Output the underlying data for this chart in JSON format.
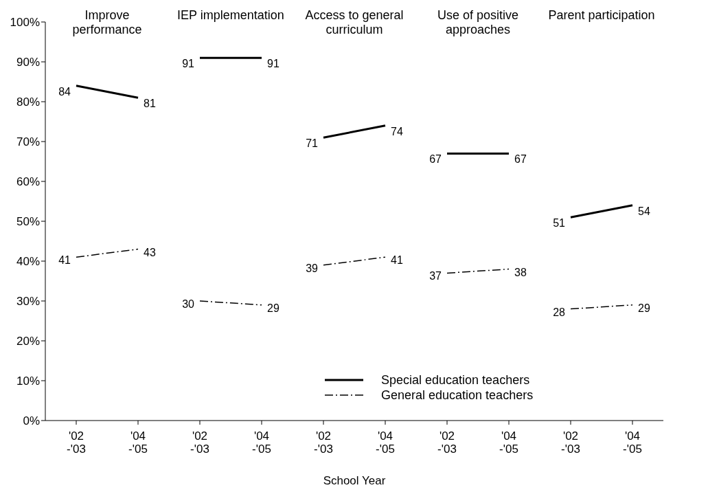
{
  "chart_data": [
    {
      "type": "line",
      "title": "Improve performance",
      "categories": [
        "'02 -'03",
        "'04 -'05"
      ],
      "ylim": [
        0,
        100
      ],
      "yticks": [
        {
          "value": 0,
          "label": "0%"
        },
        {
          "value": 10,
          "label": "10%"
        },
        {
          "value": 20,
          "label": "20%"
        },
        {
          "value": 30,
          "label": "30%"
        },
        {
          "value": 40,
          "label": "40%"
        },
        {
          "value": 50,
          "label": "50%"
        },
        {
          "value": 60,
          "label": "60%"
        },
        {
          "value": 70,
          "label": "70%"
        },
        {
          "value": 80,
          "label": "80%"
        },
        {
          "value": 90,
          "label": "90%"
        },
        {
          "value": 100,
          "label": "100%"
        }
      ],
      "marker": "none",
      "data_labels": true,
      "series": [
        {
          "color": "#000000",
          "line_style": "solid",
          "values": [
            84,
            81
          ]
        },
        {
          "color": "#000000",
          "line_style": "dashed",
          "values": [
            41,
            43
          ]
        }
      ]
    },
    {
      "type": "line",
      "title": "IEP implementation",
      "categories": [
        "'02 -'03",
        "'04 -'05"
      ],
      "ylim": [
        0,
        100
      ],
      "tick_labels": "x",
      "marker": "none",
      "data_labels": true,
      "series": [
        {
          "color": "#000000",
          "line_style": "solid",
          "values": [
            91,
            91
          ]
        },
        {
          "color": "#000000",
          "line_style": "dashed",
          "values": [
            30,
            29
          ]
        }
      ]
    },
    {
      "type": "line",
      "title": "Access to general curriculum",
      "xlabel": "School Year",
      "categories": [
        "'02 -'03",
        "'04 -'05"
      ],
      "ylim": [
        0,
        100
      ],
      "tick_labels": "x",
      "marker": "none",
      "data_labels": true,
      "legend": "bottom right",
      "series": [
        {
          "name": "Special education teachers",
          "color": "#000000",
          "line_style": "solid",
          "values": [
            71,
            74
          ]
        },
        {
          "name": "General education teachers",
          "color": "#000000",
          "line_style": "dashed",
          "values": [
            39,
            41
          ]
        }
      ]
    },
    {
      "type": "line",
      "title": "Use of positive approaches",
      "categories": [
        "'02 -'03",
        "'04 -'05"
      ],
      "ylim": [
        0,
        100
      ],
      "tick_labels": "x",
      "marker": "none",
      "data_labels": true,
      "series": [
        {
          "color": "#000000",
          "line_style": "solid",
          "values": [
            67,
            67
          ]
        },
        {
          "color": "#000000",
          "line_style": "dashed",
          "values": [
            37,
            38
          ]
        }
      ]
    },
    {
      "type": "line",
      "title": "Parent participation",
      "categories": [
        "'02 -'03",
        "'04 -'05"
      ],
      "ylim": [
        0,
        100
      ],
      "tick_labels": "x",
      "marker": "none",
      "data_labels": true,
      "series": [
        {
          "color": "#000000",
          "line_style": "solid",
          "values": [
            51,
            54
          ]
        },
        {
          "color": "#000000",
          "line_style": "dashed",
          "values": [
            28,
            29
          ]
        }
      ]
    }
  ]
}
